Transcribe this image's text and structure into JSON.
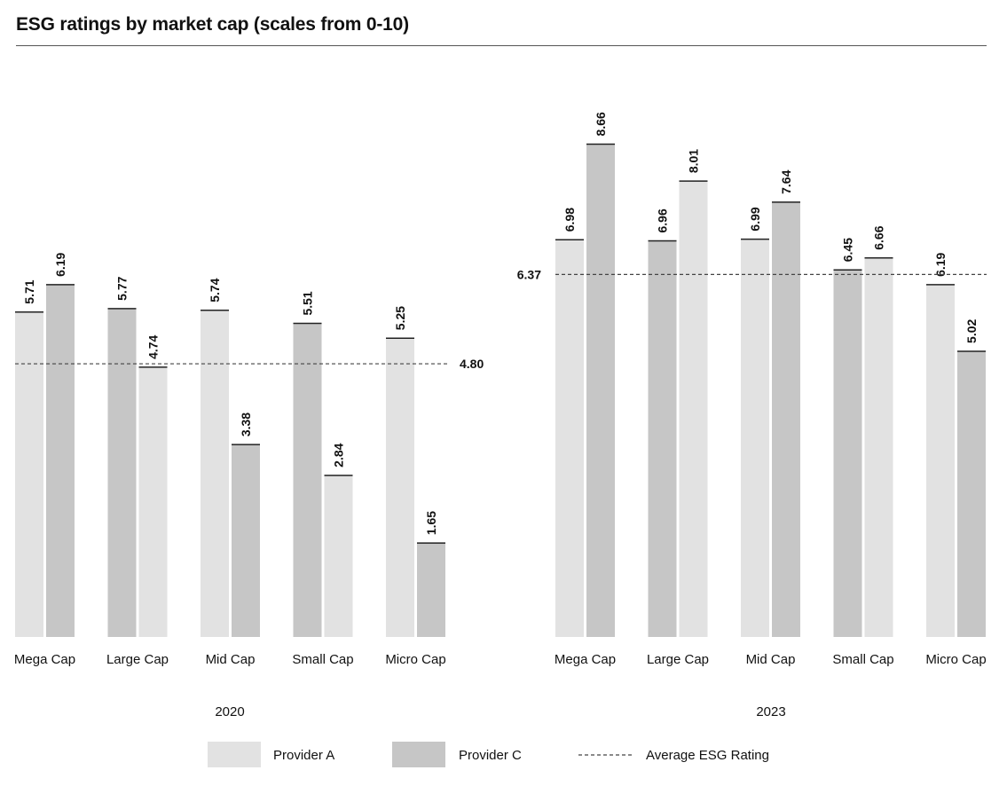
{
  "title": "ESG ratings by market cap (scales from 0-10)",
  "colors": {
    "light": "#e2e2e2",
    "dark": "#c6c6c6",
    "bar_cap": "#222222",
    "avg_line": "#444444"
  },
  "legend": [
    {
      "label": "Provider A",
      "shade": "light"
    },
    {
      "label": "Provider C",
      "shade": "dark"
    },
    {
      "label": "Average ESG Rating",
      "shade": "dashed"
    }
  ],
  "chart_data": [
    {
      "type": "bar",
      "group_label": "2020",
      "categories": [
        "Mega Cap",
        "Large Cap",
        "Mid Cap",
        "Small Cap",
        "Micro Cap"
      ],
      "ylim": [
        0,
        10
      ],
      "average": {
        "label": "Average ESG Rating",
        "value": 4.8,
        "value_label": "4.80"
      },
      "pairs": [
        {
          "values": [
            5.71,
            6.19
          ],
          "labels": [
            "5.71",
            "6.19"
          ],
          "shades": [
            "light",
            "dark"
          ]
        },
        {
          "values": [
            5.77,
            4.74
          ],
          "labels": [
            "5.77",
            "4.74"
          ],
          "shades": [
            "dark",
            "light"
          ]
        },
        {
          "values": [
            5.74,
            3.38
          ],
          "labels": [
            "5.74",
            "3.38"
          ],
          "shades": [
            "light",
            "dark"
          ]
        },
        {
          "values": [
            5.51,
            2.84
          ],
          "labels": [
            "5.51",
            "2.84"
          ],
          "shades": [
            "dark",
            "light"
          ]
        },
        {
          "values": [
            5.25,
            1.65
          ],
          "labels": [
            "5.25",
            "1.65"
          ],
          "shades": [
            "light",
            "dark"
          ]
        }
      ]
    },
    {
      "type": "bar",
      "group_label": "2023",
      "categories": [
        "Mega Cap",
        "Large Cap",
        "Mid Cap",
        "Small Cap",
        "Micro Cap"
      ],
      "ylim": [
        0,
        10
      ],
      "average": {
        "label": "Average ESG Rating",
        "value": 6.37,
        "value_label": "6.37"
      },
      "pairs": [
        {
          "values": [
            6.98,
            8.66
          ],
          "labels": [
            "6.98",
            "8.66"
          ],
          "shades": [
            "light",
            "dark"
          ]
        },
        {
          "values": [
            6.96,
            8.01
          ],
          "labels": [
            "6.96",
            "8.01"
          ],
          "shades": [
            "dark",
            "light"
          ]
        },
        {
          "values": [
            6.99,
            7.64
          ],
          "labels": [
            "6.99",
            "7.64"
          ],
          "shades": [
            "light",
            "dark"
          ]
        },
        {
          "values": [
            6.45,
            6.66
          ],
          "labels": [
            "6.45",
            "6.66"
          ],
          "shades": [
            "dark",
            "light"
          ]
        },
        {
          "values": [
            6.19,
            5.02
          ],
          "labels": [
            "6.19",
            "5.02"
          ],
          "shades": [
            "light",
            "dark"
          ]
        }
      ]
    }
  ]
}
